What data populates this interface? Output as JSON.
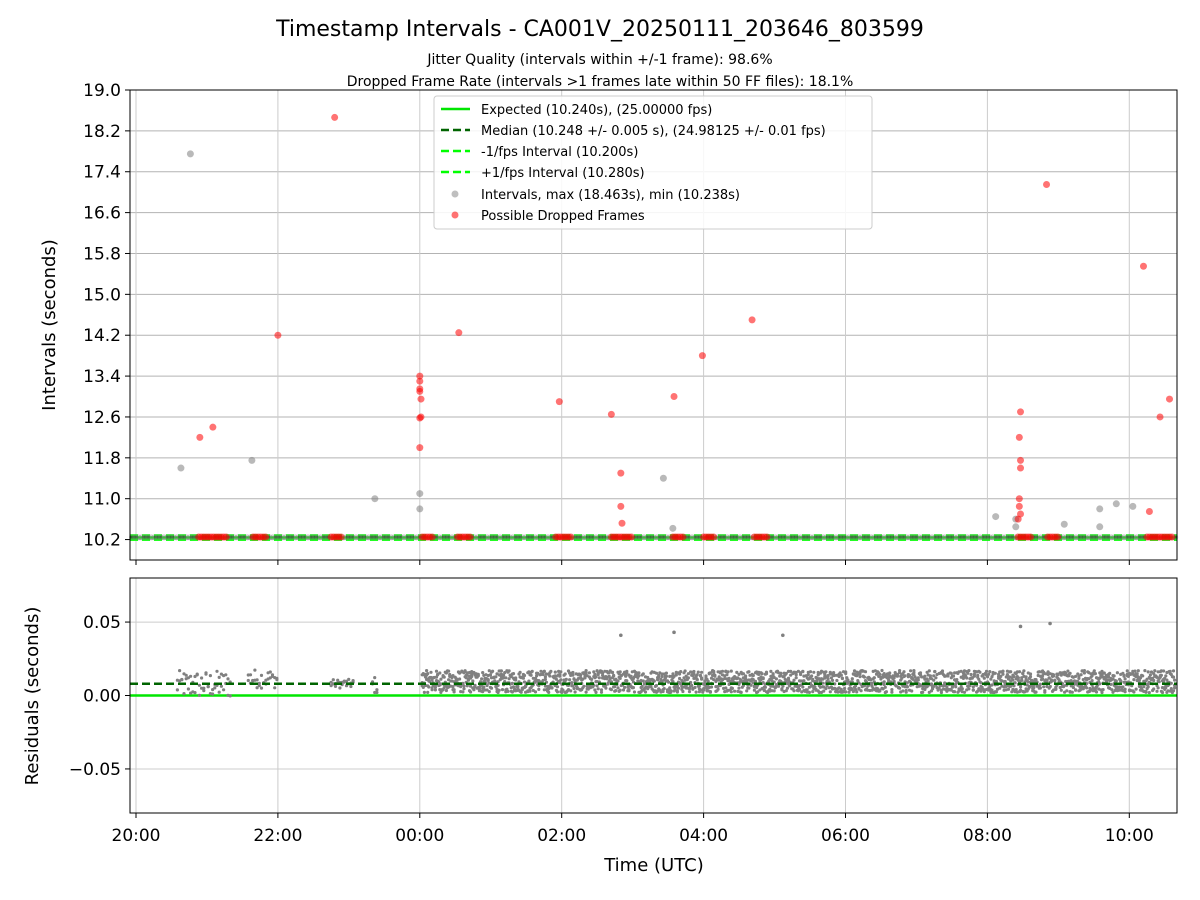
{
  "title": "Timestamp Intervals - CA001V_20250111_203646_803599",
  "subtitle1": "Jitter Quality (intervals within +/-1 frame): 98.6%",
  "subtitle2": "Dropped Frame Rate (intervals >1 frames late within 50 FF files): 18.1%",
  "colors": {
    "expected": "#00e600",
    "median": "#006400",
    "interval_bound": "#00ff00",
    "intervals": "#808080",
    "dropped": "#ff0000"
  },
  "chart_data": [
    {
      "type": "scatter",
      "ylabel": "Intervals (seconds)",
      "xlim": [
        "20:00",
        "10:40"
      ],
      "ylim": [
        9.8,
        19.0
      ],
      "yticks": [
        "10.2",
        "11.0",
        "11.8",
        "12.6",
        "13.4",
        "14.2",
        "15.0",
        "15.8",
        "16.6",
        "17.4",
        "18.2",
        "19.0"
      ],
      "grid": true,
      "legend_position": "top-center",
      "legend": [
        "Expected (10.240s), (25.00000 fps)",
        "Median (10.248 +/- 0.005 s), (24.98125 +/- 0.01 fps)",
        "-1/fps Interval (10.200s)",
        "+1/fps Interval (10.280s)",
        "Intervals, max (18.463s), min (10.238s)",
        "Possible Dropped Frames"
      ],
      "lines": {
        "expected": 10.24,
        "median": 10.248,
        "minus_1fps": 10.2,
        "plus_1fps": 10.28
      },
      "series": [
        {
          "name": "Intervals, max (18.463s), min (10.238s)",
          "points": [
            [
              "20:38",
              11.6
            ],
            [
              "20:46",
              17.75
            ],
            [
              "21:38",
              11.75
            ],
            [
              "23:22",
              11.0
            ],
            [
              "00:00",
              11.1
            ],
            [
              "00:00",
              10.8
            ],
            [
              "03:26",
              11.4
            ],
            [
              "03:34",
              10.42
            ],
            [
              "08:07",
              10.65
            ],
            [
              "08:24",
              10.6
            ],
            [
              "08:24",
              10.45
            ],
            [
              "09:05",
              10.5
            ],
            [
              "09:35",
              10.8
            ],
            [
              "09:35",
              10.45
            ],
            [
              "09:49",
              10.9
            ],
            [
              "10:03",
              10.85
            ]
          ]
        },
        {
          "name": "Possible Dropped Frames",
          "points": [
            [
              "20:54",
              12.2
            ],
            [
              "21:05",
              12.4
            ],
            [
              "22:00",
              14.2
            ],
            [
              "22:48",
              18.463
            ],
            [
              "00:00",
              13.4
            ],
            [
              "00:00",
              13.3
            ],
            [
              "00:00",
              13.15
            ],
            [
              "00:00",
              13.1
            ],
            [
              "00:01",
              12.95
            ],
            [
              "00:01",
              12.6
            ],
            [
              "00:00",
              12.58
            ],
            [
              "00:00",
              12.0
            ],
            [
              "00:33",
              14.25
            ],
            [
              "01:58",
              12.9
            ],
            [
              "02:42",
              12.65
            ],
            [
              "02:50",
              11.5
            ],
            [
              "02:50",
              10.85
            ],
            [
              "02:51",
              10.52
            ],
            [
              "03:35",
              13.0
            ],
            [
              "03:59",
              13.8
            ],
            [
              "04:41",
              14.5
            ],
            [
              "08:27",
              12.2
            ],
            [
              "08:28",
              12.7
            ],
            [
              "08:28",
              11.75
            ],
            [
              "08:28",
              11.6
            ],
            [
              "08:27",
              11.0
            ],
            [
              "08:27",
              10.85
            ],
            [
              "08:28",
              10.7
            ],
            [
              "08:26",
              10.6
            ],
            [
              "08:50",
              17.15
            ],
            [
              "10:12",
              15.55
            ],
            [
              "10:17",
              10.75
            ],
            [
              "10:26",
              12.6
            ],
            [
              "10:34",
              12.95
            ]
          ]
        }
      ],
      "dropped_clusters": [
        [
          "20:53",
          "21:17"
        ],
        [
          "21:39",
          "21:51"
        ],
        [
          "22:45",
          "22:54"
        ],
        [
          "00:02",
          "00:12"
        ],
        [
          "00:32",
          "00:44"
        ],
        [
          "01:55",
          "02:08"
        ],
        [
          "02:42",
          "03:00"
        ],
        [
          "03:34",
          "03:44"
        ],
        [
          "04:00",
          "04:10"
        ],
        [
          "04:43",
          "04:54"
        ],
        [
          "08:26",
          "08:38"
        ],
        [
          "08:51",
          "09:01"
        ],
        [
          "10:15",
          "10:40"
        ]
      ]
    },
    {
      "type": "scatter",
      "xlabel": "Time (UTC)",
      "ylabel": "Residuals (seconds)",
      "xlim": [
        "20:00",
        "10:40"
      ],
      "xticks": [
        "20:00",
        "22:00",
        "00:00",
        "02:00",
        "04:00",
        "06:00",
        "08:00",
        "10:00"
      ],
      "ylim": [
        -0.08,
        0.08
      ],
      "yticks": [
        "−0.05",
        "0.00",
        "0.05"
      ],
      "grid": true,
      "lines": {
        "expected": 0.0,
        "median": 0.008
      },
      "series": [
        {
          "name": "Residuals",
          "points": [
            [
              "02:50",
              0.041
            ],
            [
              "03:35",
              0.043
            ],
            [
              "05:07",
              0.041
            ],
            [
              "08:28",
              0.047
            ],
            [
              "08:53",
              0.049
            ]
          ],
          "bands": [
            {
              "from": "20:35",
              "to": "21:20",
              "min": -0.002,
              "max": 0.017
            },
            {
              "from": "21:35",
              "to": "22:00",
              "min": 0.005,
              "max": 0.018
            },
            {
              "from": "22:45",
              "to": "23:05",
              "min": 0.005,
              "max": 0.011
            },
            {
              "from": "23:20",
              "to": "23:25",
              "min": 0.001,
              "max": 0.013
            },
            {
              "from": "00:02",
              "to": "10:40",
              "min": 0.002,
              "max": 0.017
            }
          ]
        }
      ]
    }
  ]
}
